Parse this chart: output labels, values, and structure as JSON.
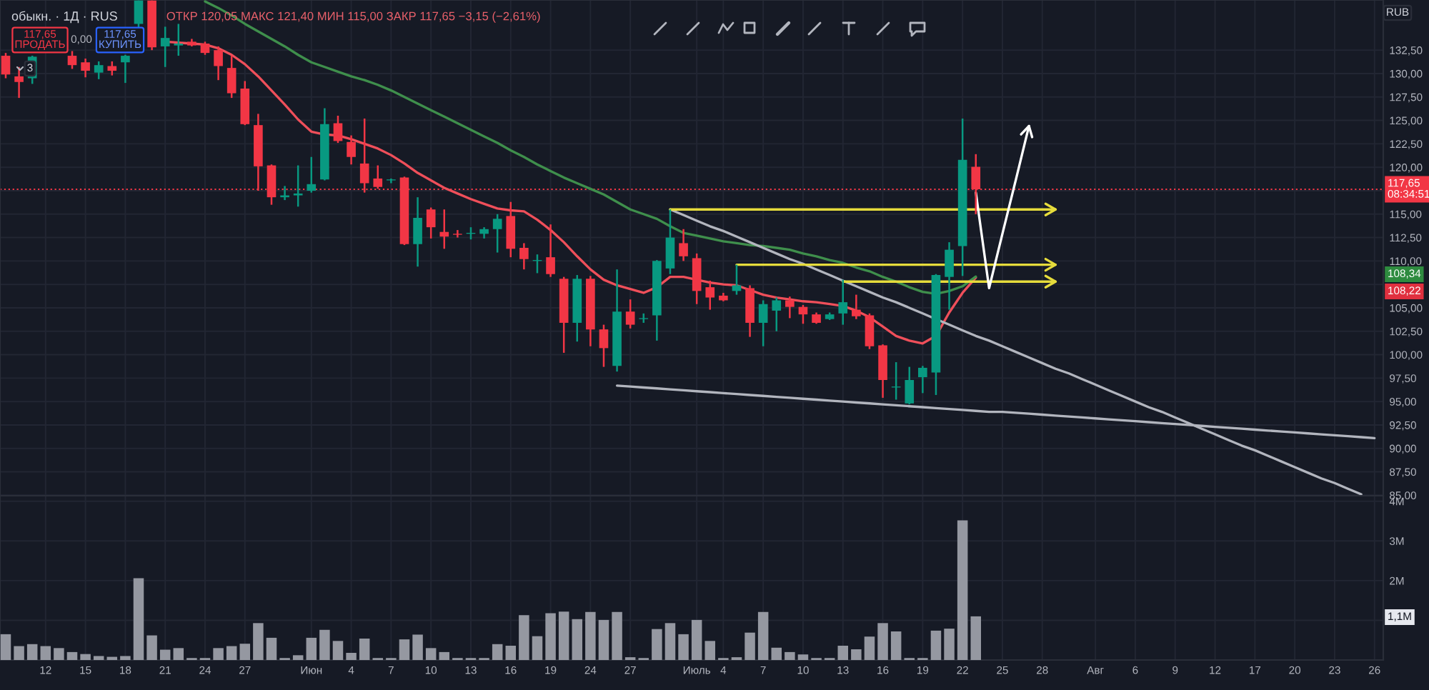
{
  "chart_data": [
    {
      "type": "candlestick",
      "title": "обыкн. · 1Д · RUS",
      "subtitle": "ОТКР 120,05 МАКС 121,40 МИН 115,00 ЗАКР 117,65 −3,15 (−2,61%)",
      "categories": [
        null,
        null,
        null,
        null,
        null,
        null,
        null,
        null,
        null,
        null,
        null,
        null,
        null,
        null,
        null,
        null,
        null,
        null,
        null,
        null,
        null,
        null,
        null,
        null,
        null,
        null,
        null,
        null,
        null,
        null,
        null,
        null,
        null,
        null,
        null,
        null,
        null,
        null,
        null,
        null,
        null,
        null,
        null,
        null,
        null,
        null,
        null,
        null,
        null,
        null,
        null,
        null,
        null,
        null,
        null,
        null,
        null,
        null,
        null,
        null,
        null,
        null,
        null,
        null,
        null,
        null,
        null,
        null,
        null,
        null,
        null,
        null,
        null,
        null,
        null,
        null,
        null,
        null,
        null,
        null,
        null,
        null,
        null,
        null,
        null,
        null,
        null,
        null,
        null,
        null,
        null,
        null,
        null,
        null,
        null,
        null,
        null,
        null,
        null,
        null,
        null,
        null,
        null,
        null
      ],
      "ohlc": [
        [
          131.9,
          132.2,
          129.5,
          129.9
        ],
        [
          129.7,
          130.7,
          127.4,
          129.1
        ],
        [
          129.5,
          131.9,
          128.9,
          131.8
        ],
        null,
        null,
        [
          131.9,
          132.4,
          130.5,
          130.9
        ],
        [
          131.2,
          131.6,
          129.6,
          130.3
        ],
        [
          130.1,
          131.3,
          129.4,
          130.9
        ],
        [
          130.8,
          131.3,
          129.8,
          130.3
        ],
        [
          131.2,
          132.0,
          129.0,
          131.9
        ],
        [
          135.3,
          137.8,
          134.8,
          137.8
        ],
        [
          137.8,
          137.8,
          132.5,
          132.8
        ],
        [
          132.9,
          135.0,
          130.7,
          133.8
        ],
        [
          133.0,
          135.3,
          131.9,
          133.2
        ],
        [
          133.4,
          133.7,
          132.9,
          133.0
        ],
        [
          133.2,
          133.4,
          132.0,
          132.2
        ],
        [
          132.5,
          132.9,
          129.3,
          130.8
        ],
        [
          130.6,
          131.9,
          127.4,
          127.9
        ],
        [
          128.4,
          129.2,
          124.5,
          124.6
        ],
        [
          124.5,
          125.7,
          117.5,
          120.1
        ],
        [
          120.2,
          120.3,
          116.0,
          116.8
        ],
        [
          116.8,
          118.0,
          116.5,
          117.0
        ],
        [
          117.0,
          120.2,
          115.8,
          117.2
        ],
        [
          117.5,
          121.1,
          117.3,
          118.2
        ],
        [
          118.7,
          126.3,
          118.6,
          124.6
        ],
        [
          124.7,
          125.5,
          122.6,
          122.8
        ],
        [
          122.7,
          123.4,
          120.3,
          121.1
        ],
        [
          120.4,
          125.2,
          117.3,
          118.3
        ],
        [
          118.8,
          120.2,
          117.7,
          117.9
        ],
        [
          118.6,
          118.8,
          118.3,
          118.7
        ],
        [
          118.9,
          119.0,
          111.7,
          111.8
        ],
        [
          111.8,
          116.8,
          109.4,
          114.6
        ],
        [
          115.5,
          115.7,
          112.4,
          113.6
        ],
        [
          113.1,
          115.5,
          111.3,
          112.6
        ],
        [
          112.9,
          113.3,
          112.5,
          112.8
        ],
        [
          112.9,
          113.6,
          112.3,
          113.0
        ],
        [
          112.9,
          113.6,
          112.4,
          113.4
        ],
        [
          113.4,
          115.0,
          110.9,
          114.5
        ],
        [
          114.8,
          116.3,
          110.4,
          111.3
        ],
        [
          111.4,
          111.9,
          109.1,
          110.2
        ],
        [
          110.0,
          110.7,
          108.7,
          110.1
        ],
        [
          110.4,
          113.9,
          108.3,
          108.6
        ],
        [
          108.1,
          108.3,
          100.2,
          103.4
        ],
        [
          103.4,
          108.5,
          101.4,
          108.1
        ],
        [
          108.1,
          108.4,
          100.9,
          102.7
        ],
        [
          102.7,
          103.2,
          98.7,
          100.7
        ],
        [
          98.8,
          109.1,
          98.2,
          104.6
        ],
        [
          104.6,
          105.9,
          102.8,
          103.2
        ],
        [
          103.8,
          104.4,
          103.4,
          103.9
        ],
        [
          104.2,
          110.1,
          101.5,
          110.0
        ],
        [
          109.2,
          115.5,
          108.6,
          112.5
        ],
        [
          111.9,
          113.4,
          110.0,
          110.5
        ],
        [
          110.3,
          110.8,
          105.4,
          106.8
        ],
        [
          107.2,
          107.9,
          104.8,
          106.1
        ],
        [
          106.3,
          106.6,
          105.7,
          105.8
        ],
        [
          106.8,
          109.6,
          106.4,
          107.4
        ],
        [
          107.1,
          107.4,
          101.9,
          103.4
        ],
        [
          103.4,
          105.8,
          100.9,
          105.4
        ],
        [
          104.7,
          106.1,
          102.5,
          105.8
        ],
        [
          105.8,
          106.2,
          103.9,
          105.1
        ],
        [
          105.1,
          105.3,
          103.3,
          104.3
        ],
        [
          104.3,
          104.5,
          103.3,
          103.4
        ],
        [
          103.8,
          104.5,
          103.7,
          104.3
        ],
        [
          104.4,
          108.0,
          103.2,
          105.6
        ],
        [
          104.8,
          106.4,
          103.8,
          104.1
        ],
        [
          104.2,
          104.4,
          100.6,
          100.9
        ],
        [
          101.0,
          101.1,
          95.4,
          97.3
        ],
        [
          96.5,
          99.2,
          95.2,
          96.6
        ],
        [
          94.8,
          98.7,
          94.7,
          97.3
        ],
        [
          97.6,
          98.8,
          95.9,
          98.6
        ],
        [
          98.1,
          108.6,
          95.7,
          108.5
        ],
        [
          108.3,
          112.0,
          104.8,
          111.2
        ],
        [
          111.6,
          125.2,
          108.4,
          120.8
        ],
        [
          120.05,
          121.4,
          115.0,
          117.65
        ],
        null,
        null,
        null,
        null,
        null,
        null,
        null,
        null,
        null,
        null,
        null,
        null,
        null,
        null,
        null,
        null,
        null,
        null,
        null,
        null,
        null,
        null,
        null,
        null,
        null,
        null,
        null,
        null,
        null,
        null
      ],
      "series": [
        {
          "type": "line",
          "color": "#ef4f5a",
          "values": [
            null,
            null,
            null,
            null,
            null,
            null,
            null,
            null,
            null,
            null,
            null,
            null,
            133.4,
            133.3,
            133.2,
            133.1,
            132.7,
            132.0,
            131.0,
            129.7,
            128.2,
            126.7,
            125.1,
            123.8,
            123.5,
            123.4,
            123.0,
            122.5,
            122.0,
            121.3,
            120.4,
            119.4,
            118.6,
            117.8,
            117.2,
            116.6,
            116.1,
            115.6,
            115.4,
            115.3,
            114.4,
            113.3,
            112.0,
            110.5,
            109.1,
            108.0,
            107.4,
            107.0,
            106.6,
            107.2,
            108.3,
            108.3,
            108.0,
            107.7,
            107.5,
            107.4,
            106.9,
            106.4,
            106.1,
            105.9,
            105.7,
            105.6,
            105.4,
            105.2,
            104.7,
            104.0,
            103.0,
            102.0,
            101.5,
            101.2,
            102.0,
            104.5,
            106.6,
            108.22,
            null,
            null,
            null,
            null,
            null,
            null,
            null,
            null,
            null,
            null,
            null,
            null,
            null,
            null,
            null,
            null,
            null,
            null,
            null,
            null,
            null,
            null,
            null,
            null,
            null,
            null,
            null,
            null,
            null,
            null
          ]
        },
        {
          "type": "line",
          "color": "#3f8f4c",
          "values": [
            null,
            null,
            null,
            null,
            null,
            null,
            null,
            null,
            null,
            null,
            null,
            null,
            null,
            null,
            null,
            137.7,
            137.0,
            136.2,
            135.3,
            134.5,
            133.7,
            132.9,
            132.0,
            131.2,
            130.7,
            130.2,
            129.7,
            129.3,
            128.8,
            128.2,
            127.5,
            126.8,
            126.1,
            125.4,
            124.7,
            124.0,
            123.3,
            122.6,
            121.8,
            121.1,
            120.3,
            119.6,
            118.9,
            118.3,
            117.7,
            117.1,
            116.3,
            115.5,
            115.0,
            114.5,
            113.7,
            113.0,
            112.7,
            112.4,
            112.1,
            111.9,
            111.7,
            111.6,
            111.4,
            111.2,
            110.8,
            110.5,
            110.1,
            109.8,
            109.3,
            108.9,
            108.3,
            107.8,
            107.2,
            106.7,
            106.5,
            106.8,
            107.3,
            108.34,
            null,
            null,
            null,
            null,
            null,
            null,
            null,
            null,
            null,
            null,
            null,
            null,
            null,
            null,
            null,
            null,
            null,
            null,
            null,
            null,
            null,
            null,
            null,
            null,
            null,
            null,
            null,
            null,
            null,
            null
          ]
        },
        {
          "type": "line",
          "color": "#b2b5be",
          "values": [
            null,
            null,
            null,
            null,
            null,
            null,
            null,
            null,
            null,
            null,
            null,
            null,
            null,
            null,
            null,
            null,
            null,
            null,
            null,
            null,
            null,
            null,
            null,
            null,
            null,
            null,
            null,
            null,
            null,
            null,
            null,
            null,
            null,
            null,
            null,
            null,
            null,
            null,
            null,
            null,
            null,
            null,
            null,
            null,
            null,
            null,
            null,
            null,
            null,
            null,
            115.5,
            114.9,
            114.3,
            113.7,
            113.2,
            112.6,
            112.0,
            111.4,
            110.8,
            110.2,
            109.7,
            109.1,
            108.5,
            107.9,
            107.3,
            106.7,
            106.1,
            105.6,
            105.0,
            104.4,
            103.8,
            103.2,
            102.6,
            102.0,
            101.5,
            100.9,
            100.3,
            99.7,
            99.1,
            98.5,
            98.0,
            97.4,
            96.8,
            96.2,
            95.6,
            95.0,
            94.4,
            93.9,
            93.3,
            92.7,
            92.1,
            91.5,
            90.9,
            90.3,
            89.8,
            89.2,
            88.6,
            88.0,
            87.4,
            86.8,
            86.3,
            85.7,
            85.1,
            null
          ]
        },
        {
          "type": "line",
          "color": "#b2b5be",
          "values": [
            null,
            null,
            null,
            null,
            null,
            null,
            null,
            null,
            null,
            null,
            null,
            null,
            null,
            null,
            null,
            null,
            null,
            null,
            null,
            null,
            null,
            null,
            null,
            null,
            null,
            null,
            null,
            null,
            null,
            null,
            null,
            null,
            null,
            null,
            null,
            null,
            null,
            null,
            null,
            null,
            null,
            null,
            null,
            null,
            null,
            null,
            96.7,
            96.6,
            96.5,
            96.4,
            96.3,
            96.2,
            96.1,
            96.0,
            95.9,
            95.8,
            95.7,
            95.6,
            95.5,
            95.4,
            95.3,
            95.2,
            95.1,
            95.0,
            94.9,
            94.8,
            94.7,
            94.6,
            94.5,
            94.4,
            94.3,
            94.2,
            94.1,
            94.0,
            93.9,
            93.9,
            93.8,
            93.7,
            93.6,
            93.5,
            93.4,
            93.3,
            93.2,
            93.1,
            93.0,
            92.9,
            92.8,
            92.7,
            92.6,
            92.5,
            92.4,
            92.3,
            92.2,
            92.1,
            92.0,
            91.9,
            91.8,
            91.7,
            91.6,
            91.5,
            91.4,
            91.3,
            91.2,
            91.1
          ]
        },
        {
          "type": "line",
          "color": "#e6dc3c",
          "values": [
            null,
            null,
            null,
            null,
            null,
            null,
            null,
            null,
            null,
            null,
            null,
            null,
            null,
            null,
            null,
            null,
            null,
            null,
            null,
            null,
            null,
            null,
            null,
            null,
            null,
            null,
            null,
            null,
            null,
            null,
            null,
            null,
            null,
            null,
            null,
            null,
            null,
            null,
            null,
            null,
            null,
            null,
            null,
            null,
            null,
            null,
            null,
            null,
            null,
            null,
            115.5,
            115.5,
            115.5,
            115.5,
            115.5,
            115.5,
            115.5,
            115.5,
            115.5,
            115.5,
            115.5,
            115.5,
            115.5,
            115.5,
            115.5,
            115.5,
            115.5,
            115.5,
            115.5,
            115.5,
            115.5,
            115.5,
            115.5,
            115.5,
            115.5,
            115.5,
            115.5,
            115.5,
            115.5,
            115.5,
            null,
            null,
            null,
            null,
            null,
            null,
            null,
            null,
            null,
            null,
            null,
            null,
            null,
            null,
            null,
            null,
            null,
            null,
            null,
            null,
            null,
            null,
            null,
            null
          ]
        },
        {
          "type": "line",
          "color": "#e6dc3c",
          "values": [
            null,
            null,
            null,
            null,
            null,
            null,
            null,
            null,
            null,
            null,
            null,
            null,
            null,
            null,
            null,
            null,
            null,
            null,
            null,
            null,
            null,
            null,
            null,
            null,
            null,
            null,
            null,
            null,
            null,
            null,
            null,
            null,
            null,
            null,
            null,
            null,
            null,
            null,
            null,
            null,
            null,
            null,
            null,
            null,
            null,
            null,
            null,
            null,
            null,
            null,
            null,
            null,
            null,
            null,
            null,
            109.6,
            109.6,
            109.6,
            109.6,
            109.6,
            109.6,
            109.6,
            109.6,
            109.6,
            109.6,
            109.6,
            109.6,
            109.6,
            109.6,
            109.6,
            109.6,
            109.6,
            109.6,
            109.6,
            109.6,
            109.6,
            109.6,
            109.6,
            109.6,
            109.6,
            null,
            null,
            null,
            null,
            null,
            null,
            null,
            null,
            null,
            null,
            null,
            null,
            null,
            null,
            null,
            null,
            null,
            null,
            null,
            null,
            null,
            null,
            null,
            null
          ]
        },
        {
          "type": "line",
          "color": "#e6dc3c",
          "values": [
            null,
            null,
            null,
            null,
            null,
            null,
            null,
            null,
            null,
            null,
            null,
            null,
            null,
            null,
            null,
            null,
            null,
            null,
            null,
            null,
            null,
            null,
            null,
            null,
            null,
            null,
            null,
            null,
            null,
            null,
            null,
            null,
            null,
            null,
            null,
            null,
            null,
            null,
            null,
            null,
            null,
            null,
            null,
            null,
            null,
            null,
            null,
            null,
            null,
            null,
            null,
            null,
            null,
            null,
            null,
            null,
            null,
            null,
            null,
            null,
            null,
            null,
            null,
            107.8,
            107.8,
            107.8,
            107.8,
            107.8,
            107.8,
            107.8,
            107.8,
            107.8,
            107.8,
            107.8,
            107.8,
            107.8,
            107.8,
            107.8,
            107.8,
            107.8,
            null,
            null,
            null,
            null,
            null,
            null,
            null,
            null,
            null,
            null,
            null,
            null,
            null,
            null,
            null,
            null,
            null,
            null,
            null,
            null,
            null,
            null,
            null,
            null
          ]
        },
        {
          "type": "line",
          "color": "#ffffff",
          "values": [
            null,
            null,
            null,
            null,
            null,
            null,
            null,
            null,
            null,
            null,
            null,
            null,
            null,
            null,
            null,
            null,
            null,
            null,
            null,
            null,
            null,
            null,
            null,
            null,
            null,
            null,
            null,
            null,
            null,
            null,
            null,
            null,
            null,
            null,
            null,
            null,
            null,
            null,
            null,
            null,
            null,
            null,
            null,
            null,
            null,
            null,
            null,
            null,
            null,
            null,
            null,
            null,
            null,
            null,
            null,
            null,
            null,
            null,
            null,
            null,
            null,
            null,
            null,
            null,
            null,
            null,
            null,
            null,
            null,
            null,
            null,
            null,
            null,
            117.3,
            107.1,
            112.9,
            118.6,
            124.4,
            null,
            null,
            null,
            null,
            null,
            null,
            null,
            null,
            null,
            null,
            null,
            null,
            null,
            null,
            null,
            null,
            null,
            null,
            null,
            null,
            null,
            null,
            null,
            null,
            null,
            null
          ]
        }
      ],
      "ref_lines": [
        {
          "axis": "y",
          "value": 117.65,
          "label": "117,65\n08:34:51",
          "color": "#f23645",
          "line_style": "dotted"
        }
      ],
      "annotations": [
        "117,65\nПРОДАТЬ",
        "0,00",
        "117,65\nКУПИТЬ",
        "3",
        "RUB",
        "108,34",
        "108,22"
      ],
      "ylim": [
        84.95,
        137.85
      ],
      "yticks": [
        {
          "value": 85,
          "label": "85,00"
        },
        {
          "value": 87.5,
          "label": "87,50"
        },
        {
          "value": 90,
          "label": "90,00"
        },
        {
          "value": 92.5,
          "label": "92,50"
        },
        {
          "value": 95,
          "label": "95,00"
        },
        {
          "value": 97.5,
          "label": "97,50"
        },
        {
          "value": 100,
          "label": "100,00"
        },
        {
          "value": 102.5,
          "label": "102,50"
        },
        {
          "value": 105,
          "label": "105,00"
        },
        {
          "value": 107.5,
          "label": null
        },
        {
          "value": 110,
          "label": "110,00"
        },
        {
          "value": 112.5,
          "label": "112,50"
        },
        {
          "value": 115,
          "label": "115,00"
        },
        {
          "value": 117.5,
          "label": null
        },
        {
          "value": 120,
          "label": "120,00"
        },
        {
          "value": 122.5,
          "label": "122,50"
        },
        {
          "value": 125,
          "label": "125,00"
        },
        {
          "value": 127.5,
          "label": "127,50"
        },
        {
          "value": 130,
          "label": "130,00"
        },
        {
          "value": 132.5,
          "label": "132,50"
        }
      ],
      "tick_labels": "y",
      "grid": true
    },
    {
      "type": "bar",
      "color": "#9598a1",
      "categories": [
        null,
        null,
        null,
        "12",
        null,
        null,
        "15",
        null,
        null,
        "18",
        null,
        null,
        "21",
        null,
        null,
        "24",
        null,
        null,
        "27",
        null,
        null,
        null,
        null,
        "Июн",
        null,
        null,
        "4",
        null,
        null,
        "7",
        null,
        null,
        "10",
        null,
        null,
        "13",
        null,
        null,
        "16",
        null,
        null,
        "19",
        null,
        null,
        "24",
        null,
        null,
        "27",
        null,
        null,
        null,
        null,
        "Июль",
        null,
        "4",
        null,
        null,
        "7",
        null,
        null,
        "10",
        null,
        null,
        "13",
        null,
        null,
        "16",
        null,
        null,
        "19",
        null,
        null,
        "22",
        null,
        null,
        "25",
        null,
        null,
        "28",
        null,
        null,
        null,
        "Авг",
        null,
        null,
        "6",
        null,
        null,
        "9",
        null,
        null,
        "12",
        null,
        null,
        "17",
        null,
        null,
        "20",
        null,
        null,
        "23",
        null,
        null,
        "26"
      ],
      "values": [
        0.65,
        0.35,
        0.4,
        0.35,
        0.3,
        0.2,
        0.15,
        0.1,
        0.08,
        0.1,
        2.06,
        0.62,
        0.26,
        0.3,
        0.05,
        0.05,
        0.3,
        0.35,
        0.41,
        0.93,
        0.56,
        0.05,
        0.12,
        0.56,
        0.76,
        0.48,
        0.18,
        0.54,
        0.05,
        0.05,
        0.52,
        0.64,
        0.3,
        0.2,
        0.05,
        0.05,
        0.05,
        0.4,
        0.36,
        1.13,
        0.6,
        1.18,
        1.22,
        1.03,
        1.21,
        1.01,
        1.21,
        0.07,
        0.05,
        0.78,
        0.93,
        0.65,
        1.01,
        0.48,
        0.05,
        0.07,
        0.69,
        1.21,
        0.31,
        0.2,
        0.14,
        0.05,
        0.05,
        0.36,
        0.27,
        0.59,
        0.93,
        0.72,
        0.05,
        0.05,
        0.74,
        0.79,
        3.52,
        1.1,
        null,
        null,
        null,
        null,
        null,
        null,
        null,
        null,
        null,
        null,
        null,
        null,
        null,
        null,
        null,
        null,
        null,
        null,
        null,
        null,
        null,
        null,
        null,
        null,
        null,
        null,
        null,
        null,
        null,
        null
      ],
      "annotations": [
        "1,1M"
      ],
      "ylim": [
        0,
        4.14
      ],
      "yticks": [
        {
          "value": 1,
          "label": null
        },
        {
          "value": 2,
          "label": "2M"
        },
        {
          "value": 3,
          "label": "3M"
        },
        {
          "value": 4,
          "label": "4M"
        }
      ],
      "grid": true
    }
  ]
}
